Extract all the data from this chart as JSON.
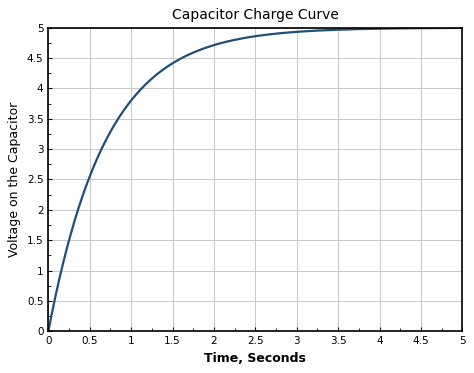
{
  "title": "Capacitor Charge Curve",
  "xlabel": "Time, Seconds",
  "ylabel": "Voltage on the Capacitor",
  "V_max": 5.0,
  "tau": 0.7,
  "t_start": 0,
  "t_end": 5,
  "xlim": [
    0,
    5
  ],
  "ylim": [
    0,
    5
  ],
  "xticks": [
    0,
    0.5,
    1,
    1.5,
    2,
    2.5,
    3,
    3.5,
    4,
    4.5,
    5
  ],
  "yticks": [
    0,
    0.5,
    1,
    1.5,
    2,
    2.5,
    3,
    3.5,
    4,
    4.5,
    5
  ],
  "line_color": "#1f4e79",
  "line_width": 1.6,
  "grid_color": "#c8c8c8",
  "background_color": "#ffffff",
  "title_fontsize": 10,
  "label_fontsize": 9,
  "tick_fontsize": 7.5
}
